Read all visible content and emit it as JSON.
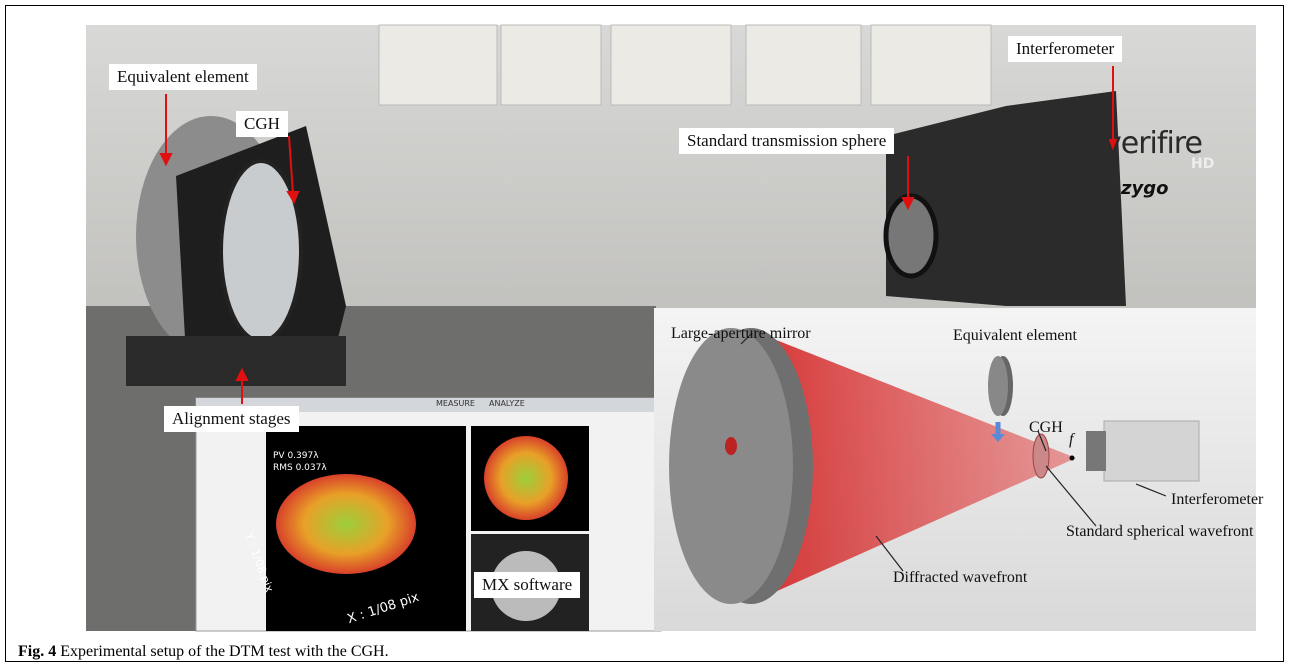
{
  "photo_labels": {
    "equivalent_element": "Equivalent element",
    "cgh": "CGH",
    "standard_transmission_sphere": "Standard transmission sphere",
    "interferometer": "Interferometer",
    "alignment_stages": "Alignment stages",
    "mx_software": "MX software"
  },
  "brand": {
    "verifire": "verifire",
    "hd": "HD",
    "zygo": "zygo"
  },
  "screen": {
    "pv": "PV 0.397λ",
    "rms": "RMS 0.037λ",
    "x_axis": "X : 1/08 pix",
    "y_axis": "Y : 1/08 pix",
    "tab_measure": "MEASURE",
    "tab_analyze": "ANALYZE"
  },
  "inset_labels": {
    "mirror": "Large-aperture mirror",
    "equivalent_element": "Equivalent element",
    "cgh": "CGH",
    "focus": "f",
    "interferometer": "Interferometer",
    "spherical_wavefront": "Standard spherical wavefront",
    "diffracted_wavefront": "Diffracted wavefront"
  },
  "caption": {
    "label": "Fig. 4",
    "text": "Experimental setup of the DTM test with the CGH."
  }
}
